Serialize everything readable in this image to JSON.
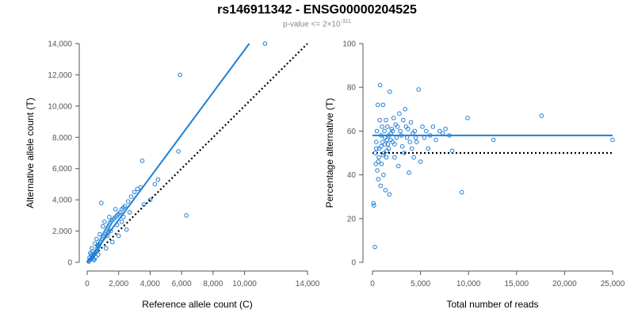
{
  "title": "rs146911342 - ENSG00000204525",
  "subtitle": {
    "text": "p-value <= 2×10",
    "exponent": "-311"
  },
  "colors": {
    "points": "#1f7fd6",
    "fit": "#1f7fd6",
    "reference": "#000000",
    "axis": "#555555"
  },
  "chart_data": [
    {
      "type": "scatter",
      "name": "allele-counts",
      "xlabel": "Reference allele count (C)",
      "ylabel": "Alternative allele count (T)",
      "xlim": [
        0,
        14000
      ],
      "ylim": [
        0,
        14000
      ],
      "xticks": [
        0,
        2000,
        4000,
        6000,
        8000,
        10000,
        14000
      ],
      "xtick_labels": [
        "0",
        "2,000",
        "4,000",
        "6,000",
        "8,000",
        "10,000",
        "14,000"
      ],
      "yticks": [
        0,
        2000,
        4000,
        6000,
        8000,
        10000,
        12000,
        14000
      ],
      "ytick_labels": [
        "0",
        "2,000",
        "4,000",
        "6,000",
        "8,000",
        "10,000",
        "12,000",
        "14,000"
      ],
      "fit_line": {
        "x": [
          0,
          10300
        ],
        "y": [
          0,
          14000
        ]
      },
      "reference_line": {
        "x": [
          0,
          14000
        ],
        "y": [
          0,
          14000
        ],
        "style": "dotted"
      },
      "points": [
        [
          100,
          50
        ],
        [
          150,
          120
        ],
        [
          200,
          180
        ],
        [
          250,
          220
        ],
        [
          300,
          400
        ],
        [
          350,
          300
        ],
        [
          400,
          450
        ],
        [
          450,
          520
        ],
        [
          500,
          600
        ],
        [
          550,
          650
        ],
        [
          600,
          700
        ],
        [
          650,
          900
        ],
        [
          700,
          1000
        ],
        [
          750,
          1100
        ],
        [
          800,
          1200
        ],
        [
          850,
          1300
        ],
        [
          900,
          1400
        ],
        [
          950,
          1500
        ],
        [
          1000,
          1600
        ],
        [
          1050,
          1700
        ],
        [
          1100,
          1800
        ],
        [
          1150,
          1900
        ],
        [
          1200,
          2000
        ],
        [
          1250,
          2100
        ],
        [
          1300,
          2200
        ],
        [
          1350,
          2300
        ],
        [
          1400,
          2400
        ],
        [
          1450,
          2500
        ],
        [
          1500,
          2600
        ],
        [
          1600,
          2700
        ],
        [
          1700,
          2800
        ],
        [
          1800,
          2900
        ],
        [
          1900,
          3000
        ],
        [
          2000,
          3100
        ],
        [
          2100,
          3200
        ],
        [
          2200,
          3400
        ],
        [
          2300,
          3500
        ],
        [
          2400,
          3600
        ],
        [
          2600,
          3900
        ],
        [
          2800,
          4200
        ],
        [
          3000,
          4500
        ],
        [
          3200,
          4700
        ],
        [
          3400,
          4800
        ],
        [
          3600,
          3700
        ],
        [
          4000,
          4000
        ],
        [
          4300,
          5000
        ],
        [
          4500,
          5300
        ],
        [
          3500,
          6500
        ],
        [
          5800,
          7100
        ],
        [
          5900,
          12000
        ],
        [
          6300,
          3000
        ],
        [
          11300,
          14000
        ],
        [
          900,
          3800
        ],
        [
          200,
          600
        ],
        [
          400,
          200
        ],
        [
          700,
          500
        ],
        [
          1200,
          900
        ],
        [
          1600,
          1300
        ],
        [
          2000,
          1700
        ],
        [
          2500,
          2100
        ],
        [
          300,
          900
        ],
        [
          600,
          1500
        ],
        [
          1000,
          2300
        ],
        [
          1400,
          2900
        ],
        [
          1800,
          3400
        ],
        [
          2200,
          2600
        ],
        [
          2700,
          3200
        ],
        [
          800,
          1800
        ],
        [
          1300,
          1700
        ],
        [
          1100,
          2600
        ],
        [
          500,
          1200
        ],
        [
          1500,
          2000
        ],
        [
          1900,
          2400
        ],
        [
          2300,
          2900
        ],
        [
          150,
          300
        ],
        [
          250,
          500
        ],
        [
          350,
          700
        ],
        [
          450,
          150
        ],
        [
          550,
          350
        ],
        [
          650,
          1100
        ]
      ]
    },
    {
      "type": "scatter",
      "name": "percentage-alternative",
      "xlabel": "Total number of reads",
      "ylabel": "Percentage alternative (T)",
      "xlim": [
        0,
        25000
      ],
      "ylim": [
        0,
        100
      ],
      "xticks": [
        0,
        5000,
        10000,
        15000,
        20000,
        25000
      ],
      "xtick_labels": [
        "0",
        "5,000",
        "10,000",
        "15,000",
        "20,000",
        "25,000"
      ],
      "yticks": [
        0,
        20,
        40,
        60,
        80,
        100
      ],
      "ytick_labels": [
        "0",
        "20",
        "40",
        "60",
        "80",
        "100"
      ],
      "fit_line": {
        "x": [
          0,
          25000
        ],
        "y": [
          58,
          58
        ]
      },
      "reference_line": {
        "x": [
          0,
          25000
        ],
        "y": [
          50,
          50
        ],
        "style": "dotted"
      },
      "points": [
        [
          100,
          27
        ],
        [
          150,
          26
        ],
        [
          250,
          7
        ],
        [
          300,
          50
        ],
        [
          350,
          45
        ],
        [
          400,
          55
        ],
        [
          450,
          60
        ],
        [
          500,
          42
        ],
        [
          550,
          72
        ],
        [
          600,
          38
        ],
        [
          650,
          48
        ],
        [
          700,
          52
        ],
        [
          750,
          65
        ],
        [
          800,
          81
        ],
        [
          850,
          35
        ],
        [
          900,
          58
        ],
        [
          950,
          45
        ],
        [
          1000,
          62
        ],
        [
          1050,
          55
        ],
        [
          1100,
          72
        ],
        [
          1150,
          40
        ],
        [
          1200,
          50
        ],
        [
          1250,
          60
        ],
        [
          1300,
          57
        ],
        [
          1350,
          33
        ],
        [
          1400,
          65
        ],
        [
          1450,
          48
        ],
        [
          1500,
          56
        ],
        [
          1550,
          62
        ],
        [
          1600,
          54
        ],
        [
          1700,
          52
        ],
        [
          1750,
          31
        ],
        [
          1800,
          78
        ],
        [
          1900,
          59
        ],
        [
          2000,
          61
        ],
        [
          2100,
          55
        ],
        [
          2200,
          66
        ],
        [
          2300,
          48
        ],
        [
          2400,
          63
        ],
        [
          2500,
          57
        ],
        [
          2600,
          62
        ],
        [
          2700,
          44
        ],
        [
          2800,
          68
        ],
        [
          2900,
          60
        ],
        [
          3000,
          58
        ],
        [
          3100,
          53
        ],
        [
          3200,
          65
        ],
        [
          3300,
          50
        ],
        [
          3400,
          70
        ],
        [
          3500,
          62
        ],
        [
          3600,
          57
        ],
        [
          3700,
          61
        ],
        [
          3800,
          41
        ],
        [
          3900,
          55
        ],
        [
          4000,
          64
        ],
        [
          4100,
          52
        ],
        [
          4200,
          59
        ],
        [
          4300,
          48
        ],
        [
          4400,
          60
        ],
        [
          4500,
          57
        ],
        [
          4600,
          55
        ],
        [
          4800,
          79
        ],
        [
          5000,
          46
        ],
        [
          5200,
          62
        ],
        [
          5400,
          57
        ],
        [
          5600,
          60
        ],
        [
          5800,
          52
        ],
        [
          6000,
          58
        ],
        [
          6300,
          62
        ],
        [
          6600,
          56
        ],
        [
          7000,
          60
        ],
        [
          7300,
          59
        ],
        [
          7600,
          61
        ],
        [
          8000,
          58
        ],
        [
          8300,
          51
        ],
        [
          9300,
          32
        ],
        [
          9900,
          66
        ],
        [
          12600,
          56
        ],
        [
          17600,
          67
        ],
        [
          25000,
          56
        ],
        [
          400,
          52
        ],
        [
          600,
          46
        ],
        [
          900,
          53
        ],
        [
          1100,
          49
        ],
        [
          1300,
          54
        ],
        [
          1500,
          51
        ],
        [
          1700,
          58
        ],
        [
          1900,
          56
        ],
        [
          2100,
          60
        ],
        [
          2300,
          54
        ]
      ]
    }
  ]
}
